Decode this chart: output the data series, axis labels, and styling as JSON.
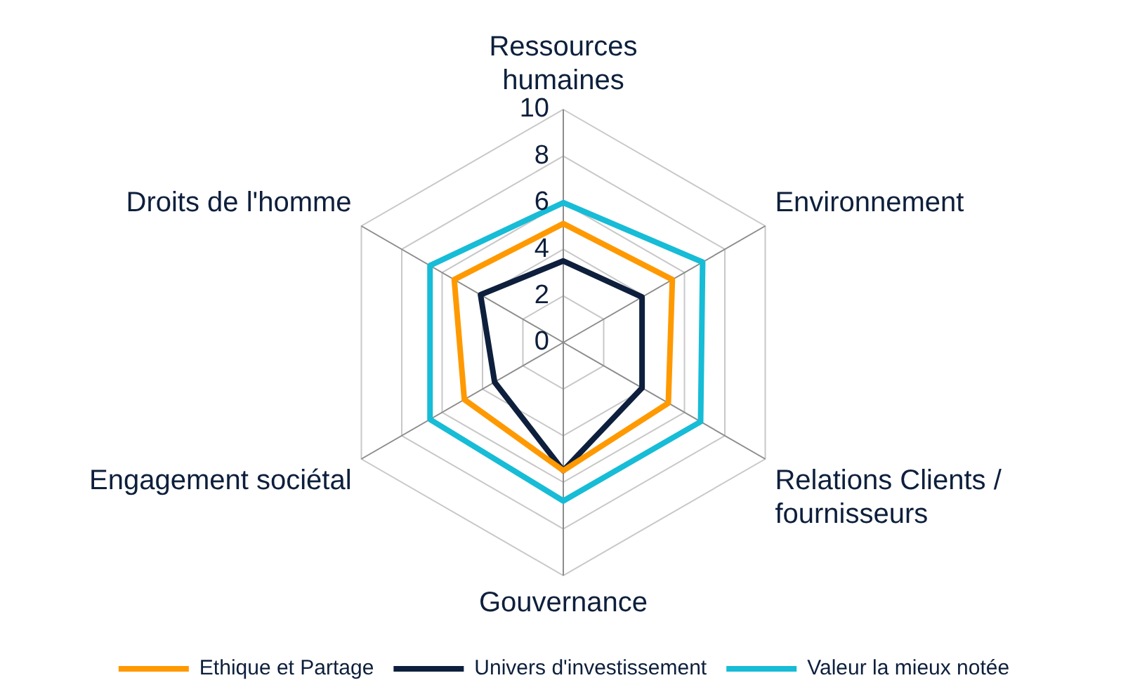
{
  "chart_data": {
    "type": "radar",
    "categories": [
      "Ressources humaines",
      "Environnement",
      "Relations Clients / fournisseurs",
      "Gouvernance",
      "Engagement sociétal",
      "Droits de l'homme"
    ],
    "series": [
      {
        "name": "Ethique et Partage",
        "color": "#ff9900",
        "values": [
          5.1,
          5.4,
          5.2,
          5.5,
          4.9,
          5.4
        ]
      },
      {
        "name": "Univers d'investissement",
        "color": "#0d1f3c",
        "values": [
          3.5,
          3.9,
          3.9,
          5.5,
          3.4,
          4.1
        ]
      },
      {
        "name": "Valeur la mieux notée",
        "color": "#17bcd6",
        "values": [
          6,
          6.9,
          6.8,
          6.8,
          6.6,
          6.6
        ]
      }
    ],
    "ylim": [
      0,
      10
    ],
    "yticks": [
      0,
      2,
      4,
      6,
      8,
      10
    ],
    "grid": true,
    "legend": "bottom",
    "marker": "none"
  }
}
